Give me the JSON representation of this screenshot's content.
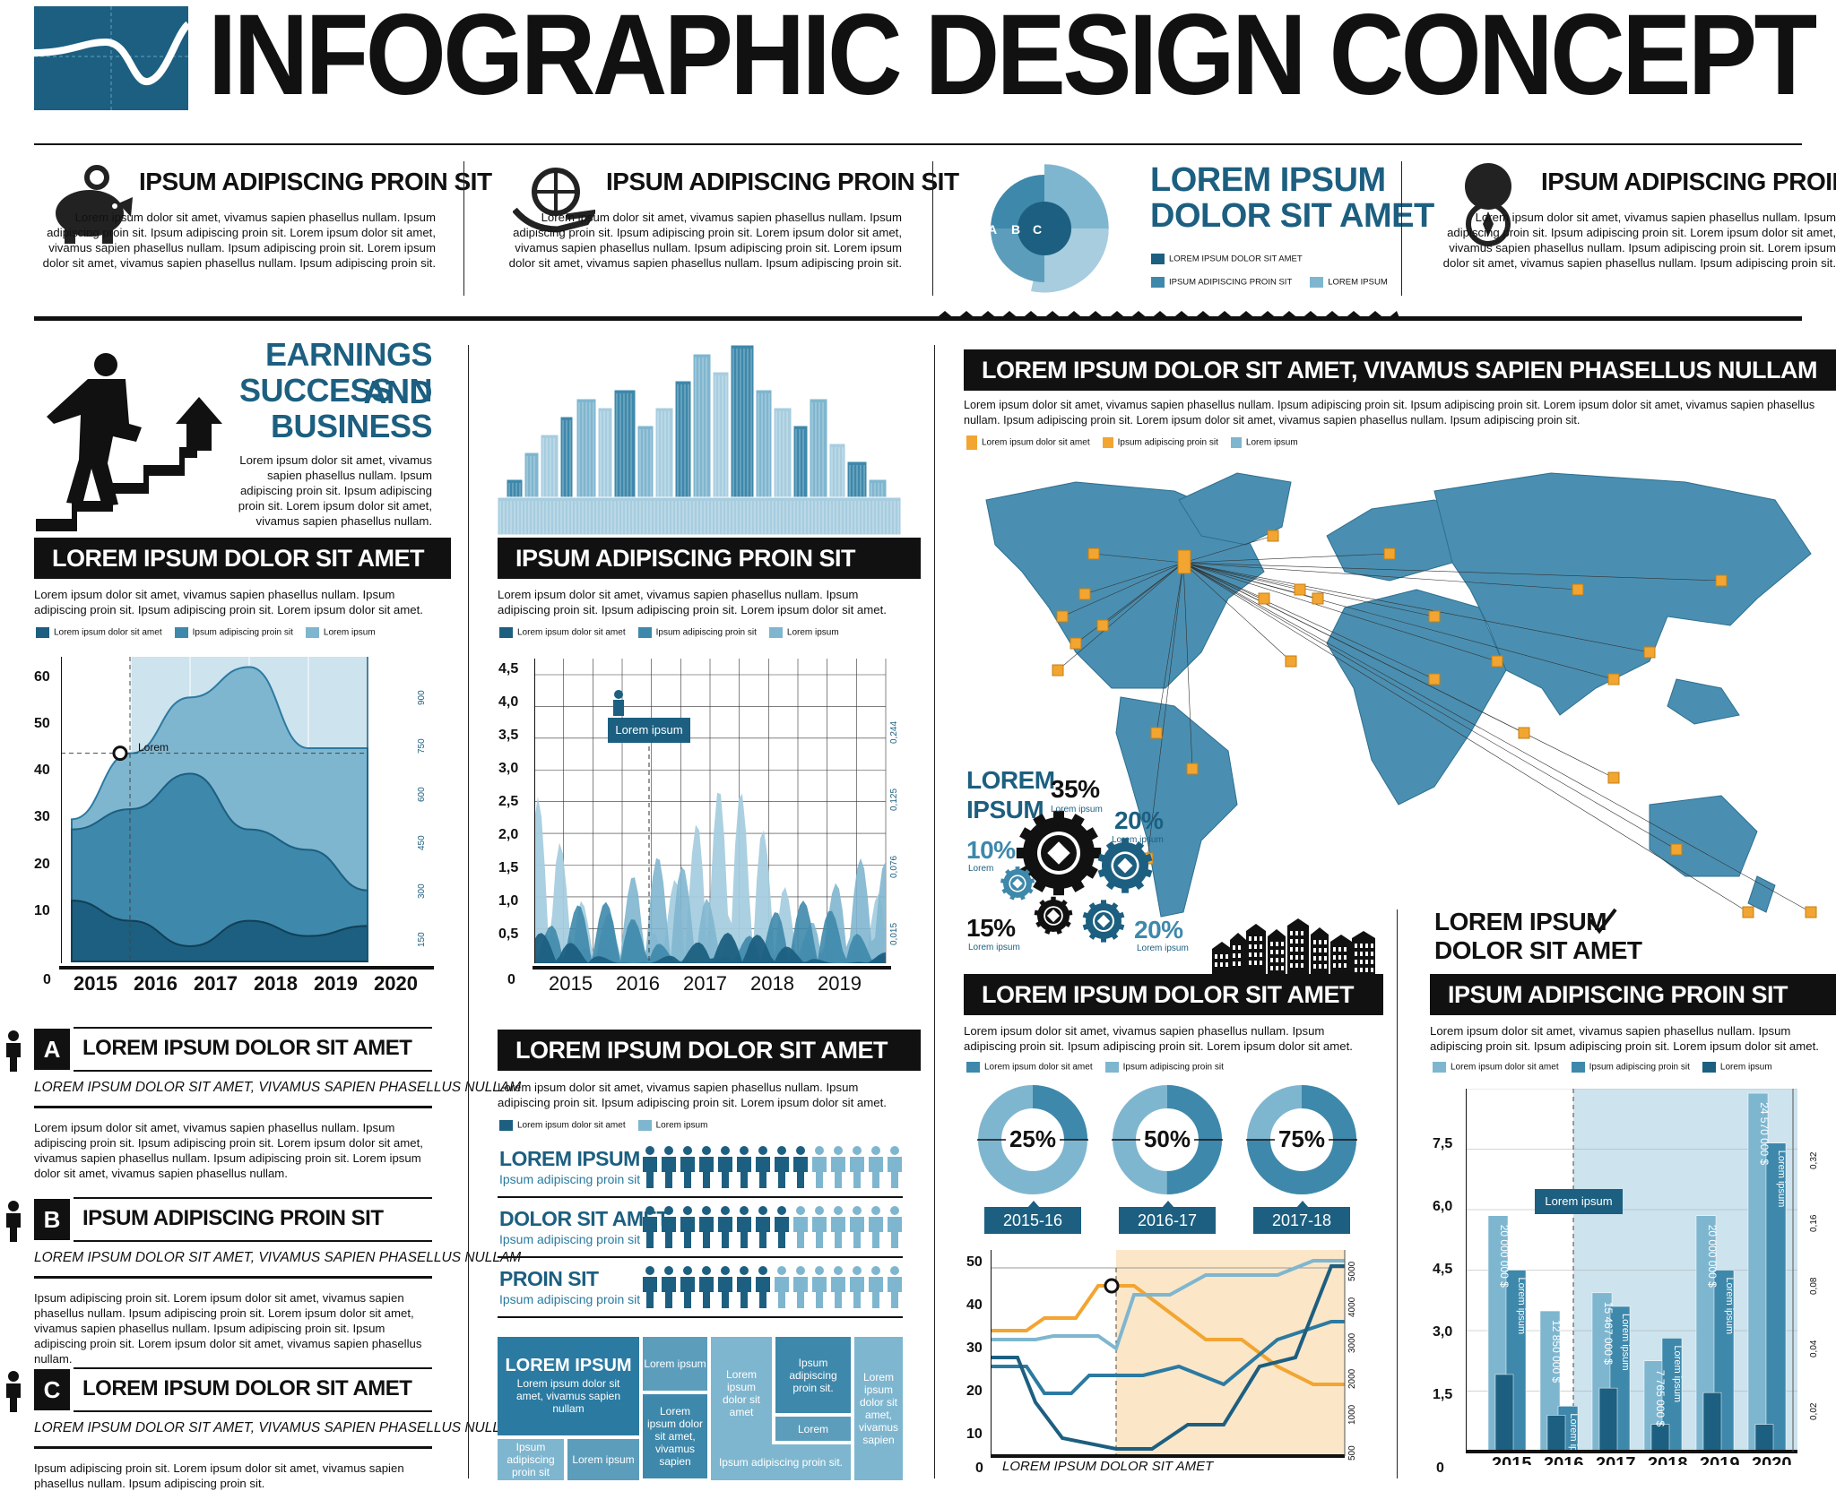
{
  "header": {
    "title": "INFOGRAPHIC DESIGN CONCEPT"
  },
  "top_cards": [
    {
      "title": "IPSUM ADIPISCING PROIN SIT",
      "icon": "piggy-bank-icon",
      "body": "Lorem ipsum dolor sit amet, vivamus sapien phasellus nullam. Ipsum adipiscing proin sit. Ipsum adipiscing proin sit. Lorem ipsum dolor sit amet, vivamus sapien phasellus nullam. Ipsum adipiscing proin sit. Lorem ipsum dolor sit amet, vivamus sapien phasellus nullam. Ipsum adipiscing proin sit."
    },
    {
      "title": "IPSUM ADIPISCING PROIN SIT",
      "icon": "globe-hand-icon",
      "body": "Lorem ipsum dolor sit amet, vivamus sapien phasellus nullam. Ipsum adipiscing proin sit. Ipsum adipiscing proin sit. Lorem ipsum dolor sit amet, vivamus sapien phasellus nullam. Ipsum adipiscing proin sit. Lorem ipsum dolor sit amet, vivamus sapien phasellus nullam. Ipsum adipiscing proin sit."
    },
    {
      "title": "LOREM IPSUM DOLOR SIT AMET",
      "title_line1": "LOREM IPSUM",
      "title_line2": "DOLOR SIT AMET",
      "icon": "radial-chart-icon",
      "letters": [
        "A",
        "B",
        "C"
      ],
      "legend": [
        "LOREM IPSUM DOLOR SIT AMET",
        "IPSUM ADIPISCING PROIN SIT",
        "LOREM IPSUM"
      ]
    },
    {
      "title": "IPSUM ADIPISCING PROIN SIT",
      "icon": "compass-icon",
      "body": "Lorem ipsum dolor sit amet, vivamus sapien phasellus nullam. Ipsum adipiscing proin sit. Ipsum adipiscing proin sit. Lorem ipsum dolor sit amet, vivamus sapien phasellus nullam. Ipsum adipiscing proin sit. Lorem ipsum dolor sit amet, vivamus sapien phasellus nullam. Ipsum adipiscing proin sit."
    }
  ],
  "earnings": {
    "title1": "EARNINGS AND",
    "title2": "SUCCESS IN",
    "title3": "BUSINESS",
    "body": "Lorem ipsum dolor sit amet, vivamus sapien phasellus nullam. Ipsum adipiscing proin sit. Ipsum adipiscing proin sit. Lorem ipsum dolor sit amet, vivamus sapien phasellus nullam."
  },
  "chart1": {
    "label": "LOREM IPSUM DOLOR SIT AMET",
    "body": "Lorem ipsum dolor sit amet, vivamus sapien phasellus nullam. Ipsum adipiscing proin sit. Ipsum adipiscing proin sit. Lorem ipsum dolor sit amet.",
    "legend": [
      "Lorem ipsum dolor sit amet",
      "Ipsum adipiscing proin sit",
      "Lorem ipsum"
    ],
    "yticks": [
      "60",
      "50",
      "40",
      "30",
      "20",
      "10"
    ],
    "rticks": [
      "900",
      "750",
      "600",
      "450",
      "300",
      "150"
    ],
    "zero": "0",
    "years": [
      "2015",
      "2016",
      "2017",
      "2018",
      "2019",
      "2020"
    ],
    "marker_label": "Lorem"
  },
  "chart2": {
    "label": "IPSUM ADIPISCING PROIN SIT",
    "body": "Lorem ipsum dolor sit amet, vivamus sapien phasellus nullam. Ipsum adipiscing proin sit. Ipsum adipiscing proin sit. Lorem ipsum dolor sit amet.",
    "legend": [
      "Lorem ipsum dolor sit amet",
      "Ipsum adipiscing proin sit",
      "Lorem ipsum"
    ],
    "yticks": [
      "4,5",
      "4,0",
      "3,5",
      "3,0",
      "2,5",
      "2,0",
      "1,5",
      "1,0",
      "0,5"
    ],
    "rticks": [
      "0,244",
      "0,125",
      "0,076",
      "0,015"
    ],
    "zero": "0",
    "years": [
      "2015",
      "2016",
      "2017",
      "2018",
      "2019"
    ],
    "tooltip": "Lorem ipsum"
  },
  "map": {
    "label": "LOREM IPSUM DOLOR SIT AMET, VIVAMUS SAPIEN PHASELLUS NULLAM",
    "body": "Lorem ipsum dolor sit amet, vivamus sapien phasellus nullam. Ipsum adipiscing proin sit. Ipsum adipiscing proin sit. Lorem ipsum dolor sit amet, vivamus sapien phasellus nullam. Ipsum adipiscing proin sit. Lorem ipsum dolor sit amet, vivamus sapien phasellus nullam. Ipsum adipiscing proin sit.",
    "legend": [
      "Lorem ipsum dolor sit amet",
      "Ipsum adipiscing proin sit",
      "Lorem ipsum"
    ]
  },
  "gears": {
    "title1": "LOREM",
    "title2": "IPSUM",
    "items": [
      {
        "pct": "35%",
        "sub": "Lorem ipsum"
      },
      {
        "pct": "20%",
        "sub": "Lorem ipsum"
      },
      {
        "pct": "10%",
        "sub": "Lorem"
      },
      {
        "pct": "15%",
        "sub": "Lorem ipsum"
      },
      {
        "pct": "20%",
        "sub": "Lorem ipsum"
      }
    ]
  },
  "checklist": {
    "line1": "LOREM IPSUM",
    "line2": "DOLOR SIT AMET"
  },
  "people": {
    "rows": [
      {
        "letter": "A",
        "title": "LOREM IPSUM DOLOR SIT AMET",
        "sub": "LOREM IPSUM DOLOR SIT AMET, VIVAMUS SAPIEN PHASELLUS NULLAM",
        "body": "Lorem ipsum dolor sit amet, vivamus sapien phasellus nullam. Ipsum adipiscing proin sit. Ipsum adipiscing proin sit. Lorem ipsum dolor sit amet, vivamus sapien phasellus nullam. Ipsum adipiscing proin sit. Lorem ipsum dolor sit amet, vivamus sapien phasellus nullam."
      },
      {
        "letter": "B",
        "title": "IPSUM ADIPISCING PROIN SIT",
        "sub": "LOREM IPSUM DOLOR SIT AMET, VIVAMUS SAPIEN PHASELLUS NULLAM",
        "body": "Ipsum adipiscing proin sit. Lorem ipsum dolor sit amet, vivamus sapien phasellus nullam. Ipsum adipiscing proin sit. Lorem ipsum dolor sit amet, vivamus sapien phasellus nullam. Ipsum adipiscing proin sit. Ipsum adipiscing proin sit. Lorem ipsum dolor sit amet, vivamus sapien phasellus nullam."
      },
      {
        "letter": "C",
        "title": "LOREM IPSUM DOLOR SIT AMET",
        "sub": "LOREM IPSUM DOLOR SIT AMET, VIVAMUS SAPIEN PHASELLUS NULLAM",
        "body": "Ipsum adipiscing proin sit. Lorem ipsum dolor sit amet, vivamus sapien phasellus nullam. Ipsum adipiscing proin sit."
      }
    ]
  },
  "pictogram": {
    "label": "LOREM IPSUM DOLOR SIT AMET",
    "body": "Lorem ipsum dolor sit amet, vivamus sapien phasellus nullam. Ipsum adipiscing proin sit. Ipsum adipiscing proin sit. Lorem ipsum dolor sit amet.",
    "legend": [
      "Lorem ipsum dolor sit amet",
      "Lorem ipsum"
    ],
    "rows": [
      {
        "title": "LOREM IPSUM",
        "sub": "Ipsum adipiscing proin sit"
      },
      {
        "title": "DOLOR SIT AMET",
        "sub": "Ipsum adipiscing proin sit"
      },
      {
        "title": "PROIN SIT",
        "sub": "Ipsum adipiscing proin sit"
      }
    ]
  },
  "mosaic": {
    "title": "LOREM IPSUM",
    "t1": "Lorem ipsum dolor sit amet, vivamus sapien nullam",
    "t2": "Lorem ipsum",
    "t3": "Lorem ipsum dolor sit amet",
    "t4": "Ipsum adipiscing proin sit.",
    "t5": "Lorem ipsum dolor sit amet, vivamus sapien",
    "t6": "Lorem ipsum dolor sit amet, vivamus sapien",
    "t7": "Lorem",
    "t8": "Ipsum adipiscing proin sit",
    "t9": "Lorem ipsum",
    "t10": "Ipsum adipiscing proin sit.",
    "t11": "Lorem ipsum"
  },
  "donuts": {
    "label": "LOREM IPSUM DOLOR SIT AMET",
    "body": "Lorem ipsum dolor sit amet, vivamus sapien phasellus nullam. Ipsum adipiscing proin sit. Ipsum adipiscing proin sit. Lorem ipsum dolor sit amet.",
    "legend": [
      "Lorem ipsum dolor sit amet",
      "Ipsum adipiscing proin sit"
    ],
    "items": [
      {
        "pct": "25%",
        "value": 25,
        "period": "2015-16"
      },
      {
        "pct": "50%",
        "value": 50,
        "period": "2016-17"
      },
      {
        "pct": "75%",
        "value": 75,
        "period": "2017-18"
      }
    ]
  },
  "line_chart": {
    "yticks": [
      "50",
      "40",
      "30",
      "20",
      "10"
    ],
    "rticks": [
      "5000",
      "4000",
      "3000",
      "2000",
      "1000",
      "500"
    ],
    "zero": "0",
    "xlabel": "LOREM IPSUM DOLOR SIT AMET"
  },
  "bar_chart": {
    "label": "IPSUM ADIPISCING PROIN SIT",
    "body": "Lorem ipsum dolor sit amet, vivamus sapien phasellus nullam. Ipsum adipiscing proin sit. Ipsum adipiscing proin sit. Lorem ipsum dolor sit amet.",
    "legend": [
      "Lorem ipsum dolor sit amet",
      "Ipsum adipiscing proin sit",
      "Lorem ipsum"
    ],
    "yticks": [
      "7,5",
      "6,0",
      "4,5",
      "3,0",
      "1,5"
    ],
    "rticks": [
      "0,32",
      "0,16",
      "0,08",
      "0,04",
      "0,02"
    ],
    "zero": "0",
    "years": [
      "2015",
      "2016",
      "2017",
      "2018",
      "2019",
      "2020"
    ],
    "tooltip": "Lorem ipsum",
    "bar_labels": [
      "20 000 000 $",
      "12 850 000 $",
      "15 467 000 $",
      "7 765 000 $",
      "20 000 000 $",
      "24 570 000 $"
    ],
    "inner_label": "Lorem ipsum"
  },
  "chart_data": [
    {
      "type": "area",
      "title": "LOREM IPSUM DOLOR SIT AMET",
      "categories": [
        "2015",
        "2016",
        "2017",
        "2018",
        "2019",
        "2020"
      ],
      "ylim": [
        0,
        60
      ],
      "series": [
        {
          "name": "Lorem ipsum",
          "values": [
            28,
            41,
            52,
            58,
            42,
            42
          ]
        },
        {
          "name": "Ipsum adipiscing proin sit",
          "values": [
            26,
            30,
            37,
            26,
            22,
            14
          ]
        },
        {
          "name": "Lorem ipsum dolor sit amet",
          "values": [
            12,
            8,
            3,
            8,
            5,
            7
          ]
        }
      ]
    },
    {
      "type": "bar",
      "title": "IPSUM ADIPISCING PROIN SIT",
      "categories": [
        "2015",
        "2016",
        "2017",
        "2018",
        "2019",
        "2020"
      ],
      "ylim": [
        0,
        8
      ],
      "series": [
        {
          "name": "Lorem ipsum dolor sit amet",
          "values": [
            5.2,
            3.1,
            3.5,
            2.0,
            5.2,
            7.9
          ]
        },
        {
          "name": "Ipsum adipiscing proin sit",
          "values": [
            4.0,
            1.0,
            3.2,
            2.5,
            4.0,
            6.8
          ]
        },
        {
          "name": "Lorem ipsum",
          "values": [
            1.7,
            0.8,
            1.4,
            0.6,
            1.3,
            0.6
          ]
        }
      ]
    },
    {
      "type": "pie",
      "title": "LOREM IPSUM DOLOR SIT AMET",
      "categories": [
        "2015-16",
        "2016-17",
        "2017-18"
      ],
      "values": [
        25,
        50,
        75
      ]
    }
  ],
  "colors": {
    "dark": "#1c5f80",
    "mid": "#3e88ab",
    "light": "#7fb6cf",
    "pale": "#cde3ee",
    "orange": "#f2a531",
    "black": "#111111"
  }
}
